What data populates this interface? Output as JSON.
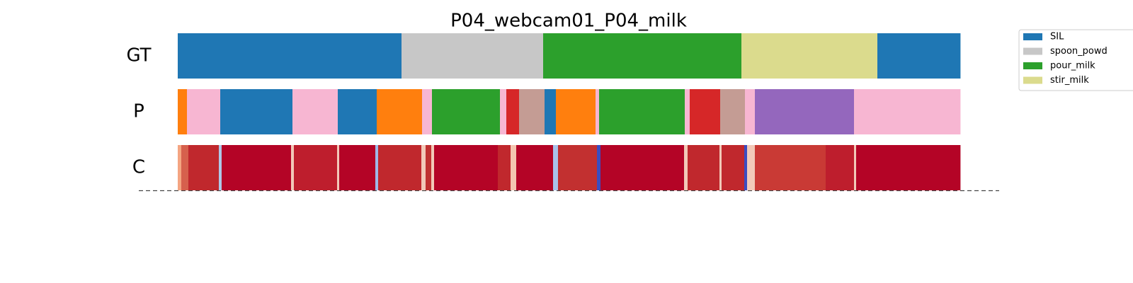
{
  "chart_data": {
    "type": "segments",
    "title": "P04_webcam01_P04_milk",
    "xlim": [
      0,
      1105
    ],
    "rows": [
      {
        "label": "GT",
        "boundaries": [
          0,
          316,
          516,
          796,
          988,
          1105
        ],
        "colors": [
          "#1f77b4",
          "#c7c7c7",
          "#2ca02c",
          "#dbdb8d",
          "#1f77b4"
        ]
      },
      {
        "label": "P",
        "boundaries": [
          0,
          13,
          60,
          162,
          226,
          281,
          345,
          359,
          455,
          464,
          482,
          518,
          534,
          590,
          595,
          716,
          723,
          766,
          801,
          815,
          955,
          1105
        ],
        "colors": [
          "#ff7f0e",
          "#f7b6d2",
          "#1f77b4",
          "#f7b6d2",
          "#1f77b4",
          "#ff7f0e",
          "#f7b6d2",
          "#2ca02c",
          "#f7b6d2",
          "#d62728",
          "#c49c94",
          "#1f77b4",
          "#ff7f0e",
          "#f7b6d2",
          "#2ca02c",
          "#f7b6d2",
          "#d62728",
          "#c49c94",
          "#f7b6d2",
          "#9467bd",
          "#f7b6d2"
        ]
      },
      {
        "label": "C",
        "boundaries": [
          0,
          5,
          15,
          58,
          62,
          160,
          164,
          225,
          228,
          279,
          283,
          344,
          350,
          358,
          362,
          452,
          470,
          478,
          530,
          537,
          592,
          597,
          715,
          720,
          765,
          768,
          800,
          804,
          815,
          915,
          955,
          958,
          1105
        ],
        "colors": [
          "#f4a582",
          "#d6604d",
          "#c0282d",
          "#aec7e8",
          "#b40426",
          "#f2c9b8",
          "#be1e2d",
          "#f2c9b8",
          "#b40426",
          "#9fb8e8",
          "#c0282d",
          "#f2c9b8",
          "#c03030",
          "#f2c9b8",
          "#b40426",
          "#c0282d",
          "#f4c6b0",
          "#b40426",
          "#a9c2ea",
          "#c23030",
          "#3b4cc0",
          "#b40426",
          "#f2c9b8",
          "#c0282d",
          "#f2c9b8",
          "#c0282d",
          "#3b4cc0",
          "#f2c9b8",
          "#c93a35",
          "#be1e2d",
          "#f2c9b8",
          "#b40426"
        ]
      }
    ],
    "series": [
      {
        "name": "SIL",
        "color": "#1f77b4"
      },
      {
        "name": "spoon_powd",
        "color": "#c7c7c7"
      },
      {
        "name": "pour_milk",
        "color": "#2ca02c"
      },
      {
        "name": "stir_milk",
        "color": "#dbdb8d"
      }
    ]
  }
}
